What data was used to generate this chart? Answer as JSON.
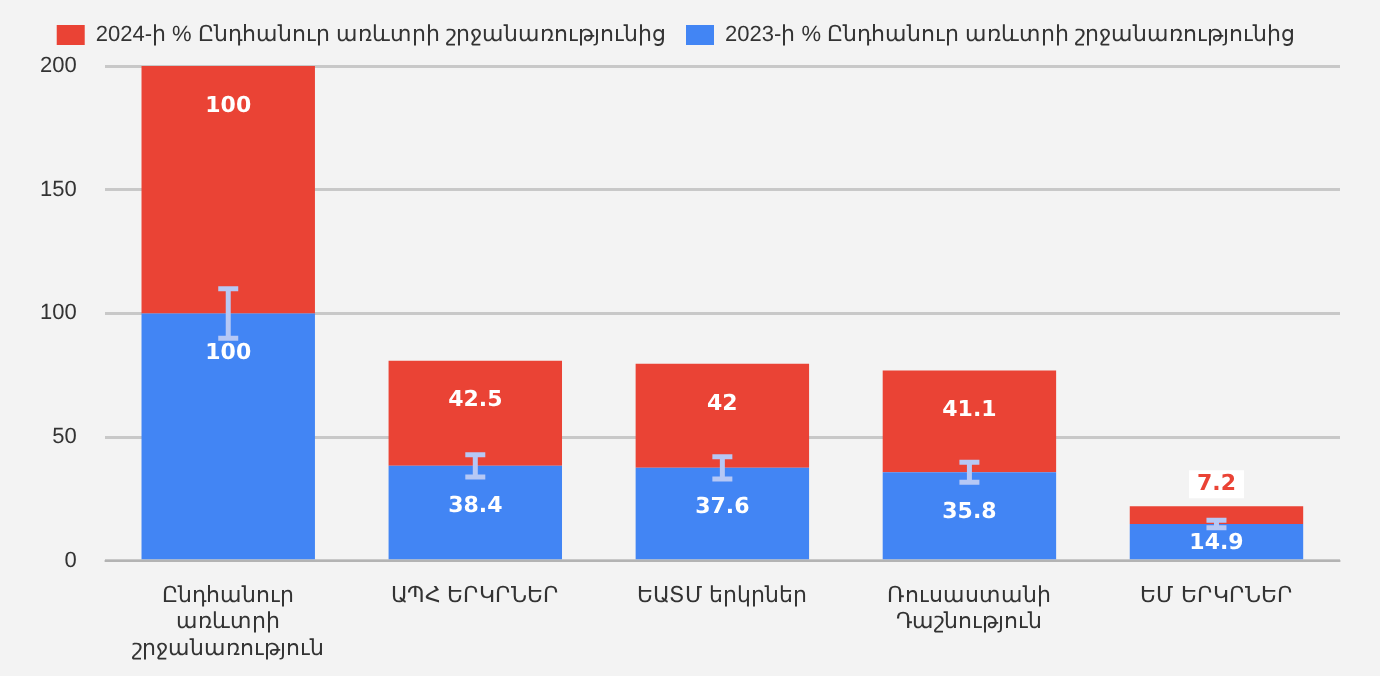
{
  "chart_data": {
    "type": "bar",
    "stacked": true,
    "categories": [
      "Ընդհանուր առևտրի շրջանառություն",
      "ԱՊՀ ԵՐԿՐՆԵՐ",
      "ԵԱՏՄ երկրներ",
      "Ռուսաստանի Դաշնություն",
      "ԵՄ ԵՐԿՐՆԵՐ"
    ],
    "series": [
      {
        "name": "2023-ի % Ընդհանուր առևտրի շրջանառությունից",
        "color": "#4285f4",
        "values": [
          100,
          38.4,
          37.6,
          35.8,
          14.9
        ],
        "errors": [
          10,
          4.5,
          4.5,
          4,
          1.5
        ]
      },
      {
        "name": "2024-ի % Ընդհանուր առևտրի շրջանառությունից",
        "color": "#ea4335",
        "values": [
          100,
          42.5,
          42,
          41.1,
          7.2
        ]
      }
    ],
    "ylim": [
      0,
      200
    ],
    "yticks": [
      0,
      50,
      100,
      150,
      200
    ],
    "grid": "y",
    "legend": "top",
    "data_labels": true
  }
}
